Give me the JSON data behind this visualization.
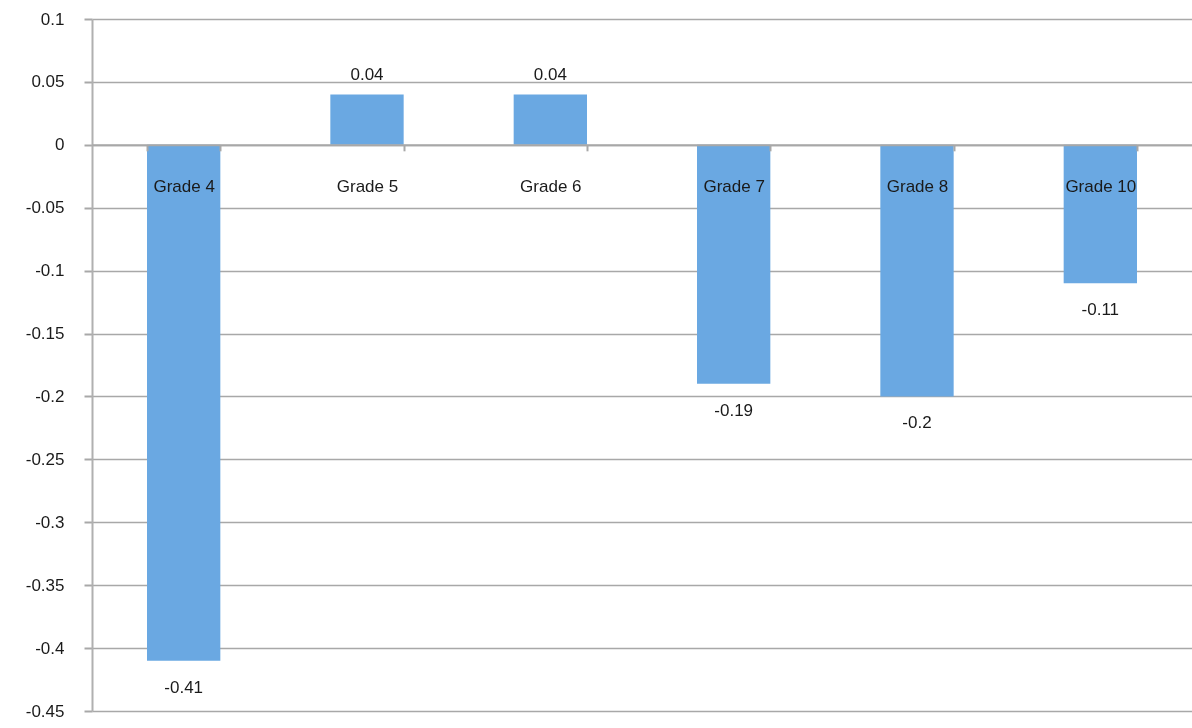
{
  "chart_data": {
    "type": "bar",
    "categories": [
      "Grade 4",
      "Grade 5",
      "Grade 6",
      "Grade 7",
      "Grade 8",
      "Grade 10"
    ],
    "values": [
      -0.41,
      0.04,
      0.04,
      -0.19,
      -0.2,
      -0.11
    ],
    "color": "#6aa8e2",
    "ylim": [
      -0.45,
      0.1
    ],
    "yticks": [
      -0.45,
      -0.4,
      -0.35,
      -0.3,
      -0.25,
      -0.2,
      -0.15,
      -0.1,
      -0.05,
      0,
      0.05,
      0.1
    ],
    "grid": "y",
    "data_labels": true
  }
}
